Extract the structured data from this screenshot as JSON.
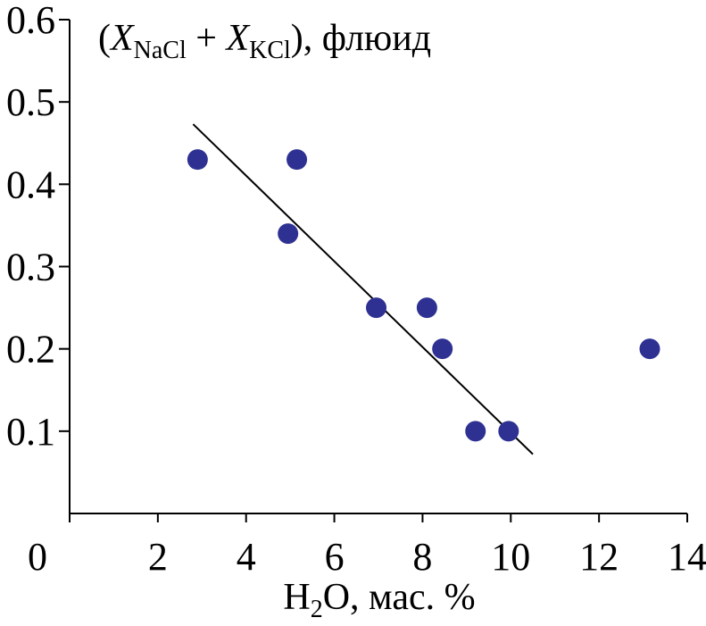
{
  "chart_data": {
    "type": "scatter",
    "title": {
      "open": "(",
      "var1": "X",
      "sub1": "NaCl",
      "plus": " + ",
      "var2": "X",
      "sub2": "KCl",
      "close": "), флюид"
    },
    "xlabel": {
      "pre": "H",
      "sub": "2",
      "post": "O, мас. %"
    },
    "ylabel": "",
    "xlim": [
      0,
      14
    ],
    "ylim": [
      0,
      0.6
    ],
    "x_ticks": [
      0,
      2,
      4,
      6,
      8,
      10,
      12,
      14
    ],
    "x_tick_labels": [
      "0",
      "2",
      "4",
      "6",
      "8",
      "10",
      "12",
      "14"
    ],
    "y_ticks": [
      0.1,
      0.2,
      0.3,
      0.4,
      0.5,
      0.6
    ],
    "y_tick_labels": [
      "0.1",
      "0.2",
      "0.3",
      "0.4",
      "0.5",
      "0.6"
    ],
    "grid": false,
    "points": [
      {
        "x": 2.9,
        "y": 0.43
      },
      {
        "x": 5.15,
        "y": 0.43
      },
      {
        "x": 4.95,
        "y": 0.34
      },
      {
        "x": 6.95,
        "y": 0.25
      },
      {
        "x": 8.1,
        "y": 0.25
      },
      {
        "x": 8.45,
        "y": 0.2
      },
      {
        "x": 9.2,
        "y": 0.1
      },
      {
        "x": 9.95,
        "y": 0.1
      },
      {
        "x": 13.15,
        "y": 0.2
      }
    ],
    "trendline": {
      "x1": 2.8,
      "y1": 0.473,
      "x2": 10.5,
      "y2": 0.072
    },
    "colors": {
      "points": "#2e3192",
      "axes": "#000000",
      "trendline": "#000000"
    }
  }
}
